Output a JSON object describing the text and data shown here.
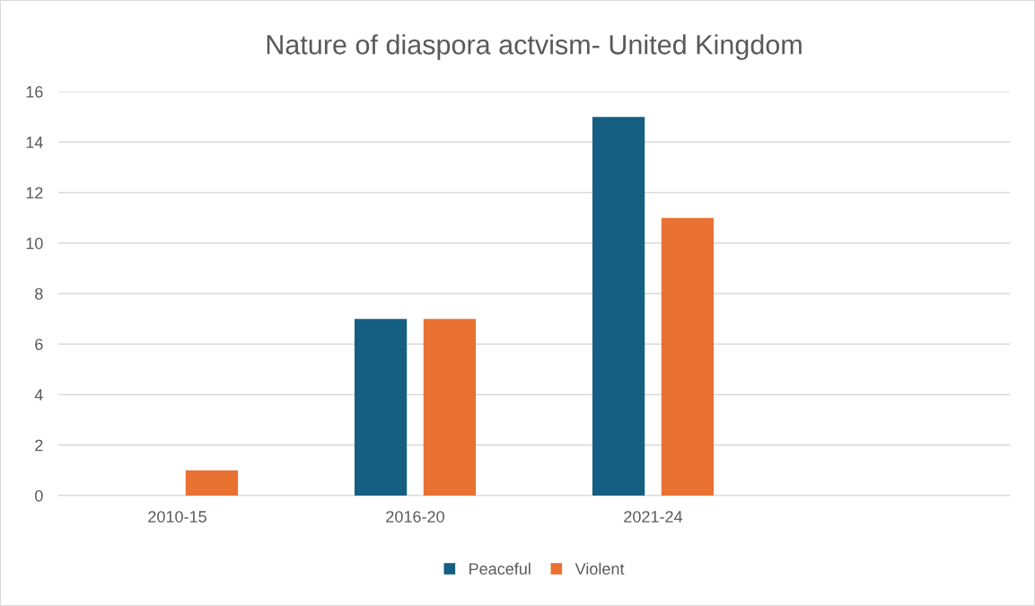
{
  "chart_data": {
    "type": "bar",
    "title": "Nature of diaspora actvism- United Kingdom",
    "categories": [
      "2010-15",
      "2016-20",
      "2021-24",
      null
    ],
    "series": [
      {
        "name": "Peaceful",
        "color": "#156082",
        "values": [
          0,
          7,
          15,
          null
        ]
      },
      {
        "name": "Violent",
        "color": "#e97132",
        "values": [
          1,
          7,
          11,
          null
        ]
      }
    ],
    "ylim": [
      0,
      16
    ],
    "yticks": [
      0,
      2,
      4,
      6,
      8,
      10,
      12,
      14,
      16
    ],
    "grid": "y",
    "legend": "bottom"
  }
}
